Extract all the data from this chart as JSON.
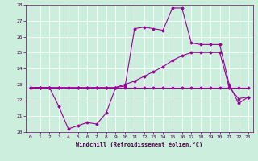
{
  "title": "",
  "xlabel": "Windchill (Refroidissement éolien,°C)",
  "background_color": "#cceedd",
  "line_color": "#990099",
  "ylim": [
    20,
    28
  ],
  "xlim": [
    -0.5,
    23.5
  ],
  "yticks": [
    20,
    21,
    22,
    23,
    24,
    25,
    26,
    27,
    28
  ],
  "xticks": [
    0,
    1,
    2,
    3,
    4,
    5,
    6,
    7,
    8,
    9,
    10,
    11,
    12,
    13,
    14,
    15,
    16,
    17,
    18,
    19,
    20,
    21,
    22,
    23
  ],
  "series": {
    "line1": {
      "x": [
        0,
        1,
        2,
        3,
        4,
        5,
        6,
        7,
        8,
        9,
        10,
        11,
        12,
        13,
        14,
        15,
        16,
        17,
        18,
        19,
        20,
        21,
        22,
        23
      ],
      "y": [
        22.8,
        22.8,
        22.8,
        22.8,
        22.8,
        22.8,
        22.8,
        22.8,
        22.8,
        22.8,
        22.8,
        22.8,
        22.8,
        22.8,
        22.8,
        22.8,
        22.8,
        22.8,
        22.8,
        22.8,
        22.8,
        22.8,
        22.8,
        22.8
      ]
    },
    "line2": {
      "x": [
        0,
        1,
        2,
        3,
        4,
        5,
        6,
        7,
        8,
        9,
        10,
        11,
        12,
        13,
        14,
        15,
        16,
        17,
        18,
        19,
        20,
        21,
        22,
        23
      ],
      "y": [
        22.8,
        22.8,
        22.8,
        22.8,
        22.8,
        22.8,
        22.8,
        22.8,
        22.8,
        22.8,
        23.0,
        23.2,
        23.5,
        23.8,
        24.1,
        24.5,
        24.8,
        25.0,
        25.0,
        25.0,
        25.0,
        22.8,
        22.1,
        22.2
      ]
    },
    "line3": {
      "x": [
        0,
        1,
        2,
        3,
        4,
        5,
        6,
        7,
        8,
        9,
        10,
        11,
        12,
        13,
        14,
        15,
        16,
        17,
        18,
        19,
        20,
        21,
        22,
        23
      ],
      "y": [
        22.8,
        22.8,
        22.8,
        21.6,
        20.2,
        20.4,
        20.6,
        20.5,
        21.2,
        22.8,
        22.9,
        26.5,
        26.6,
        26.5,
        26.4,
        27.8,
        27.8,
        25.6,
        25.5,
        25.5,
        25.5,
        23.0,
        21.8,
        22.2
      ]
    }
  }
}
